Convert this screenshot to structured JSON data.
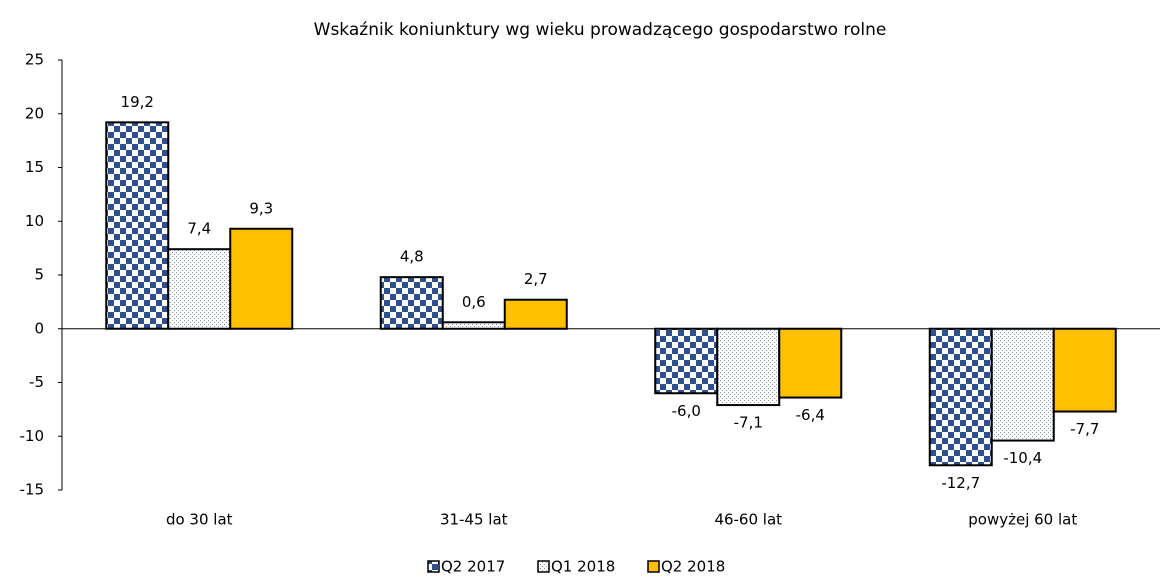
{
  "chart_data": {
    "type": "bar",
    "title": "Wskaźnik koniunktury wg wieku prowadzącego gospodarstwo rolne",
    "categories": [
      "do 30 lat",
      "31-45 lat",
      "46-60 lat",
      "powyżej 60 lat"
    ],
    "series": [
      {
        "name": "Q2 2017",
        "color": "#2f4f8f",
        "pattern": "checker",
        "values": [
          19.2,
          4.8,
          -6.0,
          -12.7
        ],
        "value_labels": [
          "19,2",
          "4,8",
          "-6,0",
          "-12,7"
        ]
      },
      {
        "name": "Q1 2018",
        "color": "#8496b0",
        "pattern": "dots",
        "values": [
          7.4,
          0.6,
          -7.1,
          -10.4
        ],
        "value_labels": [
          "7,4",
          "0,6",
          "-7,1",
          "-10,4"
        ]
      },
      {
        "name": "Q2 2018",
        "color": "#ffc000",
        "pattern": "solid",
        "values": [
          9.3,
          2.7,
          -6.4,
          -7.7
        ],
        "value_labels": [
          "9,3",
          "2,7",
          "-6,4",
          "-7,7"
        ]
      }
    ],
    "ylim": [
      -15,
      25
    ],
    "yticks": [
      -15,
      -10,
      -5,
      0,
      5,
      10,
      15,
      20,
      25
    ],
    "grid": false,
    "legend": "bottom"
  }
}
